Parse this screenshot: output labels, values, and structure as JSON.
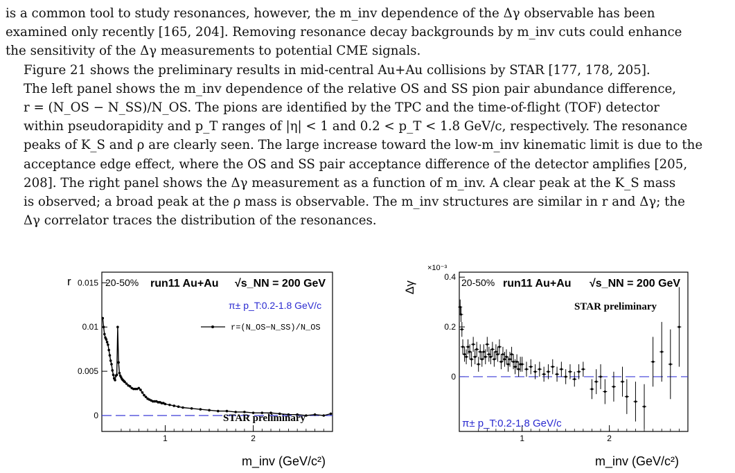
{
  "paragraph1": {
    "lines": [
      "is a common tool to study resonances, however, the m_inv dependence of the Δγ observable has been",
      "examined only recently [165, 204]. Removing resonance decay backgrounds by m_inv cuts could enhance",
      "the sensitivity of the Δγ measurements to potential CME signals."
    ]
  },
  "paragraph2": {
    "lines": [
      "Figure 21 shows the preliminary results in mid-central Au+Au collisions by STAR [177, 178, 205].",
      "The left panel shows the m_inv dependence of the relative OS and SS pion pair abundance difference,",
      "r = (N_OS − N_SS)/N_OS.  The pions are identified by the TPC and the time-of-flight (TOF) detector",
      "within pseudorapidity and p_T ranges of |η| < 1 and 0.2 < p_T < 1.8 GeV/c, respectively. The resonance",
      "peaks of K_S and ρ are clearly seen. The large increase toward the low-m_inv kinematic limit is due to the",
      "acceptance edge effect, where the OS and SS pair acceptance difference of the detector amplifies [205,",
      "208]. The right panel shows the Δγ measurement as a function of m_inv. A clear peak at the K_S mass",
      "is observed; a broad peak at the ρ mass is observable. The m_inv structures are similar in r and Δγ; the",
      "Δγ correlator traces the distribution of the resonances."
    ]
  },
  "left_panel": {
    "ylabel": "r",
    "xlabel": "m_inv (GeV/c²)",
    "centrality": "20-50%",
    "run": "run11 Au+Au",
    "energy_label": "√s_NN = 200 GeV",
    "pid_label": "π± p_T:0.2-1.8 GeV/c",
    "legend": "r=(N_OS−N_SS)/N_OS",
    "preliminary": "STAR preliminary",
    "yticks": [
      "0.015",
      "0.01",
      "0.005",
      "0"
    ],
    "xticks": [
      "1",
      "2"
    ]
  },
  "right_panel": {
    "ylabel": "Δγ",
    "exponent": "×10⁻³",
    "xlabel": "m_inv (GeV/c²)",
    "centrality": "20-50%",
    "run": "run11 Au+Au",
    "energy_label": "√s_NN = 200 GeV",
    "pid_label": "π± p_T:0.2-1.8 GeV/c",
    "preliminary": "STAR preliminary",
    "yticks": [
      "0.4",
      "0.2",
      "0"
    ],
    "xticks": [
      "1",
      "2"
    ]
  },
  "colors": {
    "text": "#111111",
    "blue": "#2a2ad0",
    "dash": "#3a3ad8",
    "frame": "#000000"
  },
  "chart_data": [
    {
      "type": "line",
      "title": "",
      "xlabel": "m_inv (GeV/c²)",
      "ylabel": "r",
      "xlim": [
        0.28,
        2.9
      ],
      "ylim": [
        -0.0018,
        0.0162
      ],
      "series": [
        {
          "name": "r=(N_OS−N_SS)/N_OS",
          "x": [
            0.29,
            0.3,
            0.31,
            0.32,
            0.33,
            0.34,
            0.35,
            0.36,
            0.37,
            0.38,
            0.39,
            0.4,
            0.41,
            0.42,
            0.43,
            0.44,
            0.45,
            0.46,
            0.47,
            0.48,
            0.49,
            0.5,
            0.51,
            0.52,
            0.53,
            0.54,
            0.56,
            0.58,
            0.6,
            0.62,
            0.64,
            0.66,
            0.68,
            0.7,
            0.72,
            0.74,
            0.76,
            0.78,
            0.8,
            0.82,
            0.84,
            0.86,
            0.88,
            0.9,
            0.92,
            0.94,
            0.96,
            0.98,
            1.0,
            1.05,
            1.1,
            1.15,
            1.2,
            1.3,
            1.4,
            1.5,
            1.6,
            1.7,
            1.8,
            1.9,
            2.0,
            2.1,
            2.2,
            2.3,
            2.4,
            2.5,
            2.6,
            2.7,
            2.8,
            2.88
          ],
          "y": [
            0.011,
            0.01,
            0.0092,
            0.0088,
            0.0086,
            0.0083,
            0.008,
            0.0074,
            0.0068,
            0.0062,
            0.0058,
            0.0051,
            0.0046,
            0.0042,
            0.004,
            0.0045,
            0.0046,
            0.01,
            0.006,
            0.0048,
            0.0045,
            0.0043,
            0.0041,
            0.004,
            0.0039,
            0.0038,
            0.0036,
            0.0034,
            0.0033,
            0.0031,
            0.003,
            0.003,
            0.003,
            0.0031,
            0.0029,
            0.0026,
            0.0023,
            0.0021,
            0.0019,
            0.0018,
            0.0017,
            0.0016,
            0.0016,
            0.0016,
            0.0015,
            0.0015,
            0.0014,
            0.0014,
            0.0013,
            0.0012,
            0.0011,
            0.001,
            0.0009,
            0.0008,
            0.0007,
            0.0006,
            0.0005,
            0.0005,
            0.0004,
            0.0004,
            0.0003,
            0.0003,
            0.0003,
            0.0002,
            0.0001,
            0.0001,
            0.0,
            0.0001,
            0.0,
            0.0002
          ]
        }
      ]
    },
    {
      "type": "scatter",
      "title": "",
      "xlabel": "m_inv (GeV/c²)",
      "ylabel": "Δγ (×10⁻³)",
      "xlim": [
        0.28,
        2.9
      ],
      "ylim": [
        -0.22,
        0.42
      ],
      "series": [
        {
          "name": "",
          "x": [
            0.29,
            0.3,
            0.31,
            0.32,
            0.34,
            0.36,
            0.38,
            0.4,
            0.42,
            0.44,
            0.46,
            0.48,
            0.5,
            0.52,
            0.54,
            0.56,
            0.58,
            0.6,
            0.62,
            0.64,
            0.66,
            0.68,
            0.7,
            0.72,
            0.74,
            0.76,
            0.78,
            0.8,
            0.82,
            0.84,
            0.86,
            0.88,
            0.9,
            0.92,
            0.94,
            0.96,
            0.98,
            1.0,
            1.05,
            1.1,
            1.15,
            1.2,
            1.25,
            1.3,
            1.35,
            1.4,
            1.45,
            1.5,
            1.55,
            1.6,
            1.65,
            1.7,
            1.8,
            1.85,
            1.9,
            1.95,
            2.05,
            2.15,
            2.2,
            2.3,
            2.4,
            2.5,
            2.6,
            2.7,
            2.8
          ],
          "y": [
            0.28,
            0.25,
            0.19,
            0.12,
            0.09,
            0.08,
            0.12,
            0.1,
            0.07,
            0.13,
            0.08,
            0.11,
            0.05,
            0.1,
            0.07,
            0.1,
            0.08,
            0.13,
            0.09,
            0.08,
            0.11,
            0.07,
            0.1,
            0.09,
            0.12,
            0.06,
            0.09,
            0.07,
            0.08,
            0.05,
            0.07,
            0.09,
            0.06,
            0.04,
            0.06,
            0.03,
            0.05,
            0.05,
            0.03,
            0.04,
            0.02,
            0.03,
            0.01,
            0.02,
            0.04,
            0.01,
            0.03,
            0.0,
            0.02,
            -0.01,
            0.02,
            0.03,
            -0.05,
            -0.02,
            0.0,
            -0.06,
            -0.04,
            -0.02,
            -0.08,
            -0.1,
            -0.12,
            0.06,
            0.1,
            0.05,
            0.2
          ],
          "err": [
            0.03,
            0.03,
            0.03,
            0.03,
            0.03,
            0.03,
            0.03,
            0.03,
            0.03,
            0.03,
            0.03,
            0.03,
            0.03,
            0.03,
            0.03,
            0.03,
            0.03,
            0.03,
            0.03,
            0.03,
            0.03,
            0.03,
            0.03,
            0.03,
            0.03,
            0.03,
            0.03,
            0.03,
            0.03,
            0.03,
            0.03,
            0.03,
            0.03,
            0.03,
            0.03,
            0.03,
            0.03,
            0.03,
            0.03,
            0.03,
            0.03,
            0.03,
            0.03,
            0.03,
            0.03,
            0.03,
            0.03,
            0.03,
            0.03,
            0.03,
            0.03,
            0.03,
            0.04,
            0.05,
            0.05,
            0.05,
            0.06,
            0.06,
            0.07,
            0.08,
            0.09,
            0.1,
            0.12,
            0.14,
            0.16
          ]
        }
      ]
    }
  ]
}
